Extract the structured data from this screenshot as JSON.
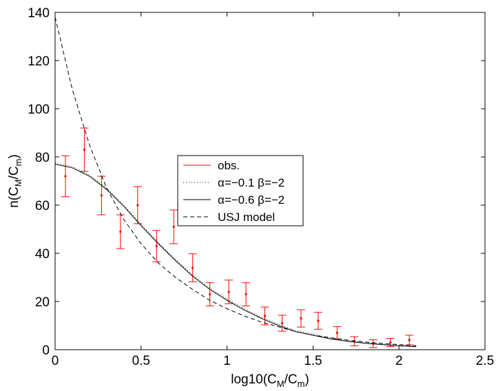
{
  "chart_data": {
    "type": "line",
    "title": "",
    "xlabel": {
      "base": "log10(C",
      "sub1": "M",
      "mid": "/C",
      "sub2": "m",
      "end": ")"
    },
    "ylabel": {
      "base": "n(C",
      "sub1": "M",
      "mid": "/C",
      "sub2": "m",
      "end": ")"
    },
    "xlim": [
      0,
      2.5
    ],
    "ylim": [
      0,
      140
    ],
    "xticks": [
      "0",
      "0.5",
      "1",
      "1.5",
      "2",
      "2.5"
    ],
    "yticks": [
      "0",
      "20",
      "40",
      "60",
      "80",
      "100",
      "120",
      "140"
    ],
    "grid": false,
    "legend_position": "center",
    "series": [
      {
        "name": "obs.",
        "kind": "errorbar",
        "color": "#ff0000",
        "x": [
          0.06,
          0.17,
          0.27,
          0.38,
          0.48,
          0.59,
          0.69,
          0.8,
          0.9,
          1.01,
          1.11,
          1.22,
          1.32,
          1.43,
          1.53,
          1.64,
          1.74,
          1.85,
          1.95,
          2.06
        ],
        "y": [
          72,
          83,
          64,
          49,
          60,
          43,
          51,
          34,
          23,
          24,
          23,
          14,
          11,
          13,
          12,
          7,
          3.5,
          2.5,
          3,
          4
        ],
        "yerr": [
          8.5,
          9,
          8,
          7,
          7.7,
          6.5,
          7,
          5.8,
          4.8,
          4.9,
          4.8,
          3.7,
          3.3,
          3.6,
          3.5,
          2.6,
          1.9,
          1.6,
          1.7,
          2
        ]
      },
      {
        "name": "α=−0.1 β=−2",
        "kind": "line",
        "style": "dotted",
        "color": "#000000",
        "x": [
          0,
          0.1,
          0.2,
          0.3,
          0.4,
          0.5,
          0.6,
          0.7,
          0.8,
          0.9,
          1.0,
          1.1,
          1.2,
          1.3,
          1.4,
          1.5,
          1.6,
          1.7,
          1.8,
          1.9,
          2.0,
          2.1
        ],
        "y": [
          77.5,
          76,
          72.5,
          67,
          60,
          52,
          44.5,
          37.5,
          31,
          25.5,
          21,
          17,
          13.5,
          10.5,
          8,
          6.5,
          5,
          3.8,
          3,
          2.4,
          1.9,
          1.5
        ]
      },
      {
        "name": "α=−0.6 β=−2",
        "kind": "line",
        "style": "solid",
        "color": "#000000",
        "x": [
          0,
          0.1,
          0.2,
          0.3,
          0.4,
          0.5,
          0.6,
          0.7,
          0.8,
          0.9,
          1.0,
          1.1,
          1.2,
          1.3,
          1.4,
          1.5,
          1.6,
          1.7,
          1.8,
          1.9,
          2.0,
          2.1
        ],
        "y": [
          77,
          75.5,
          72,
          66.5,
          59.5,
          51.5,
          44,
          37,
          30.5,
          25,
          20.5,
          16.5,
          13,
          10,
          7.5,
          6,
          4.5,
          3.5,
          2.7,
          2.1,
          1.6,
          1.2
        ]
      },
      {
        "name": "USJ model",
        "kind": "line",
        "style": "dashed",
        "color": "#000000",
        "x": [
          0,
          0.1,
          0.2,
          0.3,
          0.4,
          0.5,
          0.6,
          0.7,
          0.8,
          0.9,
          1.0,
          1.1,
          1.2,
          1.3,
          1.4,
          1.5,
          1.6,
          1.7,
          1.8,
          1.9,
          2.0,
          2.1
        ],
        "y": [
          138,
          108,
          85,
          67,
          54,
          44,
          36,
          30,
          25,
          20.5,
          17,
          14,
          11.5,
          9.5,
          7.5,
          6,
          5,
          4,
          3.2,
          2.6,
          2.1,
          1.7
        ]
      }
    ]
  }
}
